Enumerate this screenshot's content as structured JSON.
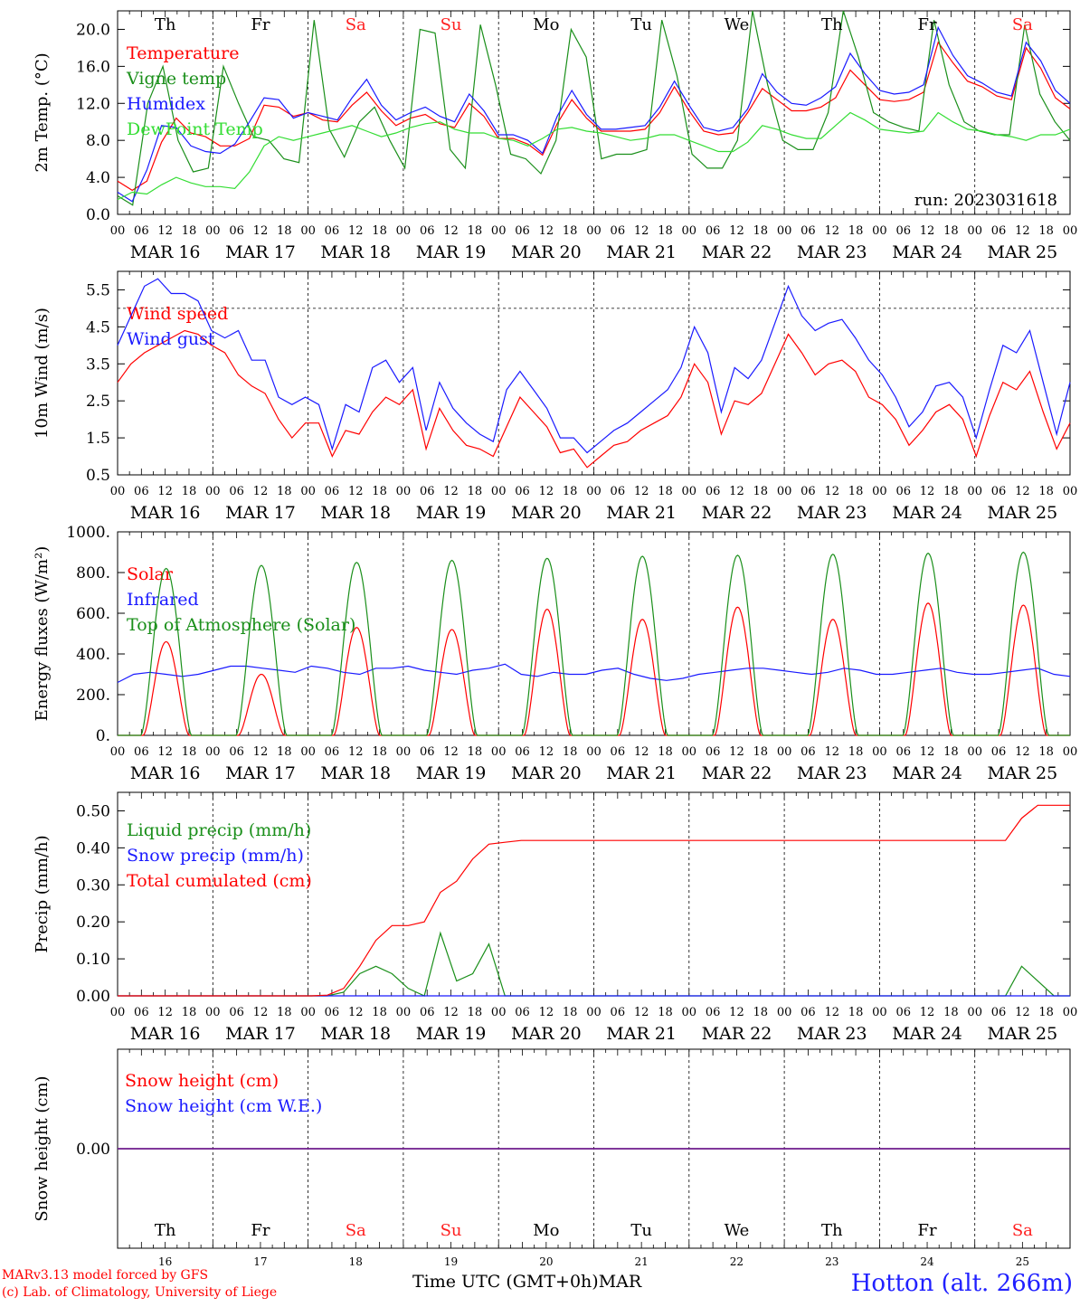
{
  "colors": {
    "red": "#ff0000",
    "green": "#1a8f1a",
    "lightgreen": "#33dd33",
    "blue": "#1a1aff",
    "purple": "#6a1a8a",
    "axis": "#000000",
    "weekend": "#ff2020"
  },
  "days": [
    {
      "abbr": "Th",
      "date": "MAR 16",
      "num": "16",
      "weekend": false
    },
    {
      "abbr": "Fr",
      "date": "MAR 17",
      "num": "17",
      "weekend": false
    },
    {
      "abbr": "Sa",
      "date": "MAR 18",
      "num": "18",
      "weekend": true
    },
    {
      "abbr": "Su",
      "date": "MAR 19",
      "num": "19",
      "weekend": true
    },
    {
      "abbr": "Mo",
      "date": "MAR 20",
      "num": "20",
      "weekend": false
    },
    {
      "abbr": "Tu",
      "date": "MAR 21",
      "num": "21",
      "weekend": false
    },
    {
      "abbr": "We",
      "date": "MAR 22",
      "num": "22",
      "weekend": false
    },
    {
      "abbr": "Th",
      "date": "MAR 23",
      "num": "23",
      "weekend": false
    },
    {
      "abbr": "Fr",
      "date": "MAR 24",
      "num": "24",
      "weekend": false
    },
    {
      "abbr": "Sa",
      "date": "MAR 25",
      "num": "25",
      "weekend": true
    }
  ],
  "hour_ticks": [
    "00",
    "06",
    "12",
    "18"
  ],
  "footer": {
    "model": "MARv3.13 model forced by GFS",
    "copyright": "(c) Lab. of Climatology, University of Liege",
    "xaxis_title": "Time UTC (GMT+0h)",
    "month": "MAR",
    "station": "Hotton (alt. 266m)"
  },
  "chart_data": [
    {
      "type": "line",
      "ylabel": "2m Temp. (°C)",
      "ylim": [
        0,
        22
      ],
      "yticks": [
        "0.0",
        "4.0",
        "8.0",
        "12.0",
        "16.0",
        "20.0"
      ],
      "annotation": "run: 2023031618",
      "series": [
        {
          "name": "Temperature",
          "color": "red",
          "values": [
            3.6,
            2.6,
            3.6,
            7.8,
            10.4,
            8.8,
            8.4,
            7.4,
            7.4,
            8.2,
            11.8,
            11.6,
            10.6,
            11.0,
            10.2,
            10.0,
            11.8,
            13.2,
            11.2,
            9.6,
            10.4,
            10.8,
            9.8,
            9.4,
            12.0,
            10.6,
            8.2,
            8.2,
            7.6,
            6.4,
            9.8,
            12.4,
            10.4,
            9.0,
            9.0,
            9.0,
            9.2,
            11.0,
            13.8,
            11.2,
            9.0,
            8.6,
            8.8,
            11.0,
            13.6,
            12.4,
            11.2,
            11.2,
            11.6,
            12.6,
            15.6,
            14.0,
            12.4,
            12.2,
            12.4,
            13.2,
            18.6,
            16.4,
            14.4,
            13.8,
            12.8,
            12.4,
            18.0,
            15.8,
            12.6,
            11.4
          ]
        },
        {
          "name": "Vigne temp",
          "color": "green",
          "values": [
            2.0,
            1.0,
            12.0,
            16.0,
            8.0,
            4.6,
            5.0,
            16.0,
            12.0,
            8.4,
            8.0,
            6.0,
            5.6,
            21.0,
            9.2,
            6.2,
            10.0,
            11.6,
            8.0,
            5.0,
            20.0,
            19.6,
            7.0,
            5.0,
            20.5,
            14.0,
            6.5,
            6.0,
            4.4,
            8.0,
            20.0,
            17.0,
            6.0,
            6.5,
            6.5,
            7.0,
            21.0,
            15.0,
            6.5,
            5.0,
            5.0,
            8.0,
            22.0,
            14.0,
            8.0,
            7.0,
            7.0,
            11.0,
            22.0,
            17.0,
            11.0,
            10.0,
            9.4,
            9.0,
            21.0,
            14.0,
            10.0,
            9.0,
            8.6,
            8.6,
            20.5,
            13.0,
            10.0,
            8.0
          ]
        },
        {
          "name": "Humidex",
          "color": "blue",
          "values": [
            2.4,
            1.4,
            4.8,
            9.6,
            9.4,
            7.4,
            6.8,
            6.6,
            7.6,
            10.0,
            12.6,
            12.4,
            10.4,
            11.0,
            10.6,
            10.2,
            12.6,
            14.6,
            11.8,
            10.2,
            11.0,
            11.6,
            10.6,
            10.0,
            13.0,
            11.2,
            8.6,
            8.6,
            8.0,
            6.6,
            10.6,
            13.4,
            10.8,
            9.2,
            9.2,
            9.4,
            9.6,
            11.6,
            14.4,
            11.8,
            9.4,
            9.0,
            9.4,
            11.4,
            15.2,
            13.2,
            12.0,
            11.8,
            12.6,
            13.8,
            17.4,
            15.2,
            13.4,
            13.0,
            13.2,
            14.0,
            20.2,
            17.2,
            15.0,
            14.2,
            13.2,
            12.8,
            18.6,
            16.6,
            13.4,
            12.0
          ]
        },
        {
          "name": "DewPoint Temp",
          "color": "lightgreen",
          "values": [
            1.6,
            2.4,
            2.2,
            3.2,
            4.0,
            3.4,
            3.0,
            3.0,
            2.8,
            4.6,
            7.4,
            8.4,
            8.0,
            8.4,
            8.8,
            9.2,
            9.6,
            9.0,
            8.4,
            8.8,
            9.4,
            9.8,
            10.0,
            9.2,
            8.8,
            8.8,
            8.2,
            8.0,
            7.4,
            8.2,
            9.2,
            9.4,
            9.0,
            8.8,
            8.4,
            8.0,
            8.2,
            8.6,
            8.6,
            8.0,
            7.4,
            6.8,
            6.8,
            7.8,
            9.6,
            9.2,
            8.6,
            8.2,
            8.2,
            9.6,
            11.0,
            10.2,
            9.2,
            9.0,
            8.8,
            9.0,
            11.0,
            10.0,
            9.2,
            9.0,
            8.6,
            8.4,
            8.0,
            8.6,
            8.6,
            9.2
          ]
        }
      ]
    },
    {
      "type": "line",
      "ylabel": "10m Wind (m/s)",
      "ylim": [
        0.5,
        6.0
      ],
      "yticks": [
        "0.5",
        "1.5",
        "2.5",
        "3.5",
        "4.5",
        "5.5"
      ],
      "reference_line": 5.0,
      "series": [
        {
          "name": "Wind speed",
          "color": "red",
          "values": [
            3.0,
            3.5,
            3.8,
            4.0,
            4.2,
            4.4,
            4.3,
            4.0,
            3.8,
            3.2,
            2.9,
            2.7,
            2.0,
            1.5,
            1.9,
            1.9,
            1.0,
            1.7,
            1.6,
            2.2,
            2.6,
            2.4,
            2.8,
            1.2,
            2.3,
            1.7,
            1.3,
            1.2,
            1.0,
            1.8,
            2.6,
            2.2,
            1.8,
            1.1,
            1.2,
            0.7,
            1.0,
            1.3,
            1.4,
            1.7,
            1.9,
            2.1,
            2.6,
            3.5,
            3.0,
            1.6,
            2.5,
            2.4,
            2.7,
            3.5,
            4.3,
            3.8,
            3.2,
            3.5,
            3.6,
            3.3,
            2.6,
            2.4,
            2.0,
            1.3,
            1.7,
            2.2,
            2.4,
            2.0,
            1.0,
            2.1,
            3.0,
            2.8,
            3.3,
            2.2,
            1.2,
            1.9
          ]
        },
        {
          "name": "Wind gust",
          "color": "blue",
          "values": [
            4.0,
            4.8,
            5.6,
            5.8,
            5.4,
            5.4,
            5.2,
            4.4,
            4.2,
            4.4,
            3.6,
            3.6,
            2.6,
            2.4,
            2.6,
            2.4,
            1.2,
            2.4,
            2.2,
            3.4,
            3.6,
            3.0,
            3.4,
            1.7,
            3.0,
            2.3,
            1.9,
            1.6,
            1.4,
            2.8,
            3.3,
            2.8,
            2.3,
            1.5,
            1.5,
            1.1,
            1.4,
            1.7,
            1.9,
            2.2,
            2.5,
            2.8,
            3.4,
            4.5,
            3.8,
            2.2,
            3.4,
            3.1,
            3.6,
            4.6,
            5.6,
            4.8,
            4.4,
            4.6,
            4.7,
            4.2,
            3.6,
            3.2,
            2.6,
            1.8,
            2.2,
            2.9,
            3.0,
            2.6,
            1.5,
            2.8,
            4.0,
            3.8,
            4.4,
            3.0,
            1.6,
            3.0
          ]
        }
      ]
    },
    {
      "type": "line",
      "ylabel": "Energy fluxes (W/m²)",
      "ylim": [
        0,
        1000
      ],
      "yticks": [
        "0.",
        "200.",
        "400.",
        "600.",
        "800.",
        "1000."
      ],
      "series": [
        {
          "name": "Solar",
          "color": "red",
          "day_peaks": [
            460,
            300,
            530,
            520,
            620,
            570,
            630,
            570,
            650,
            640
          ]
        },
        {
          "name": "Infrared",
          "color": "blue",
          "values": [
            260,
            300,
            310,
            300,
            290,
            300,
            320,
            340,
            340,
            330,
            320,
            310,
            340,
            330,
            310,
            300,
            330,
            330,
            340,
            320,
            310,
            300,
            320,
            330,
            350,
            300,
            290,
            310,
            300,
            300,
            320,
            330,
            300,
            280,
            270,
            280,
            300,
            310,
            320,
            330,
            330,
            320,
            310,
            300,
            310,
            330,
            320,
            300,
            300,
            310,
            320,
            330,
            310,
            300,
            300,
            310,
            320,
            330,
            300,
            290
          ]
        },
        {
          "name": "Top of Atmosphere (Solar)",
          "color": "green",
          "day_peaks": [
            820,
            835,
            850,
            860,
            870,
            880,
            885,
            890,
            895,
            900
          ]
        }
      ]
    },
    {
      "type": "line",
      "ylabel": "Precip (mm/h)",
      "ylim": [
        0,
        0.55
      ],
      "yticks": [
        "0.00",
        "0.10",
        "0.20",
        "0.30",
        "0.40",
        "0.50"
      ],
      "series": [
        {
          "name": "Liquid precip (mm/h)",
          "color": "green",
          "values": [
            0,
            0,
            0,
            0,
            0,
            0,
            0,
            0,
            0,
            0,
            0,
            0,
            0,
            0,
            0.01,
            0.06,
            0.08,
            0.06,
            0.02,
            0,
            0.17,
            0.04,
            0.06,
            0.14,
            0,
            0,
            0,
            0,
            0,
            0,
            0,
            0,
            0,
            0,
            0,
            0,
            0,
            0,
            0,
            0,
            0,
            0,
            0,
            0,
            0,
            0,
            0,
            0,
            0,
            0,
            0,
            0,
            0,
            0,
            0,
            0,
            0.08,
            0.04,
            0,
            0
          ]
        },
        {
          "name": "Snow precip (mm/h)",
          "color": "blue",
          "values": [
            0,
            0,
            0,
            0,
            0,
            0,
            0,
            0,
            0,
            0
          ]
        },
        {
          "name": "Total cumulated (cm)",
          "color": "red",
          "values": [
            0,
            0,
            0,
            0,
            0,
            0,
            0,
            0,
            0,
            0,
            0,
            0,
            0,
            0.002,
            0.02,
            0.08,
            0.15,
            0.19,
            0.19,
            0.2,
            0.28,
            0.31,
            0.37,
            0.41,
            0.415,
            0.42,
            0.42,
            0.42,
            0.42,
            0.42,
            0.42,
            0.42,
            0.42,
            0.42,
            0.42,
            0.42,
            0.42,
            0.42,
            0.42,
            0.42,
            0.42,
            0.42,
            0.42,
            0.42,
            0.42,
            0.42,
            0.42,
            0.42,
            0.42,
            0.42,
            0.42,
            0.42,
            0.42,
            0.42,
            0.42,
            0.42,
            0.48,
            0.515,
            0.515,
            0.515
          ]
        }
      ]
    },
    {
      "type": "line",
      "ylabel": "Snow height (cm)",
      "ylim": [
        -1,
        1
      ],
      "yticks": [
        "0.00"
      ],
      "series": [
        {
          "name": "Snow height (cm)",
          "color": "red",
          "values": [
            0,
            0
          ]
        },
        {
          "name": "Snow height (cm W.E.)",
          "color": "blue",
          "values": [
            0,
            0
          ]
        }
      ]
    }
  ]
}
